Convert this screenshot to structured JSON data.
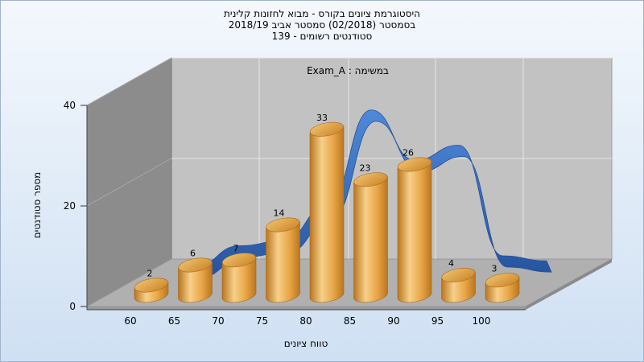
{
  "header": {
    "title_line1": "היסטוגרמת ציונים בקורס - מבוא לחזונות קלינית",
    "title_line2": "בסמסטר  (02/2018)  סמסטר אביב 2018/19",
    "title_line3": "סטודנטים רשומים - 139"
  },
  "colors": {
    "bar": "#e8a445",
    "bar_highlight": "#f7d08a",
    "bar_shadow": "#b8761f",
    "curve": "#2f6bc4",
    "wall": "#c2c2c2",
    "side_wall": "#8c8c8c"
  },
  "chart_data": {
    "type": "bar",
    "annotation": "במשימה : Exam_A",
    "xlabel": "טווח ציונים",
    "ylabel": "מספר סטודנטים",
    "x_ticks": [
      "60",
      "65",
      "70",
      "75",
      "80",
      "85",
      "90",
      "95",
      "100"
    ],
    "y_ticks": [
      "0",
      "20",
      "40"
    ],
    "ylim": [
      0,
      40
    ],
    "values": [
      2,
      6,
      7,
      14,
      33,
      23,
      26,
      4,
      3
    ],
    "grid": true,
    "series": [
      {
        "values": [
          2,
          6,
          7,
          14,
          33,
          23,
          26,
          4,
          3
        ]
      }
    ]
  }
}
